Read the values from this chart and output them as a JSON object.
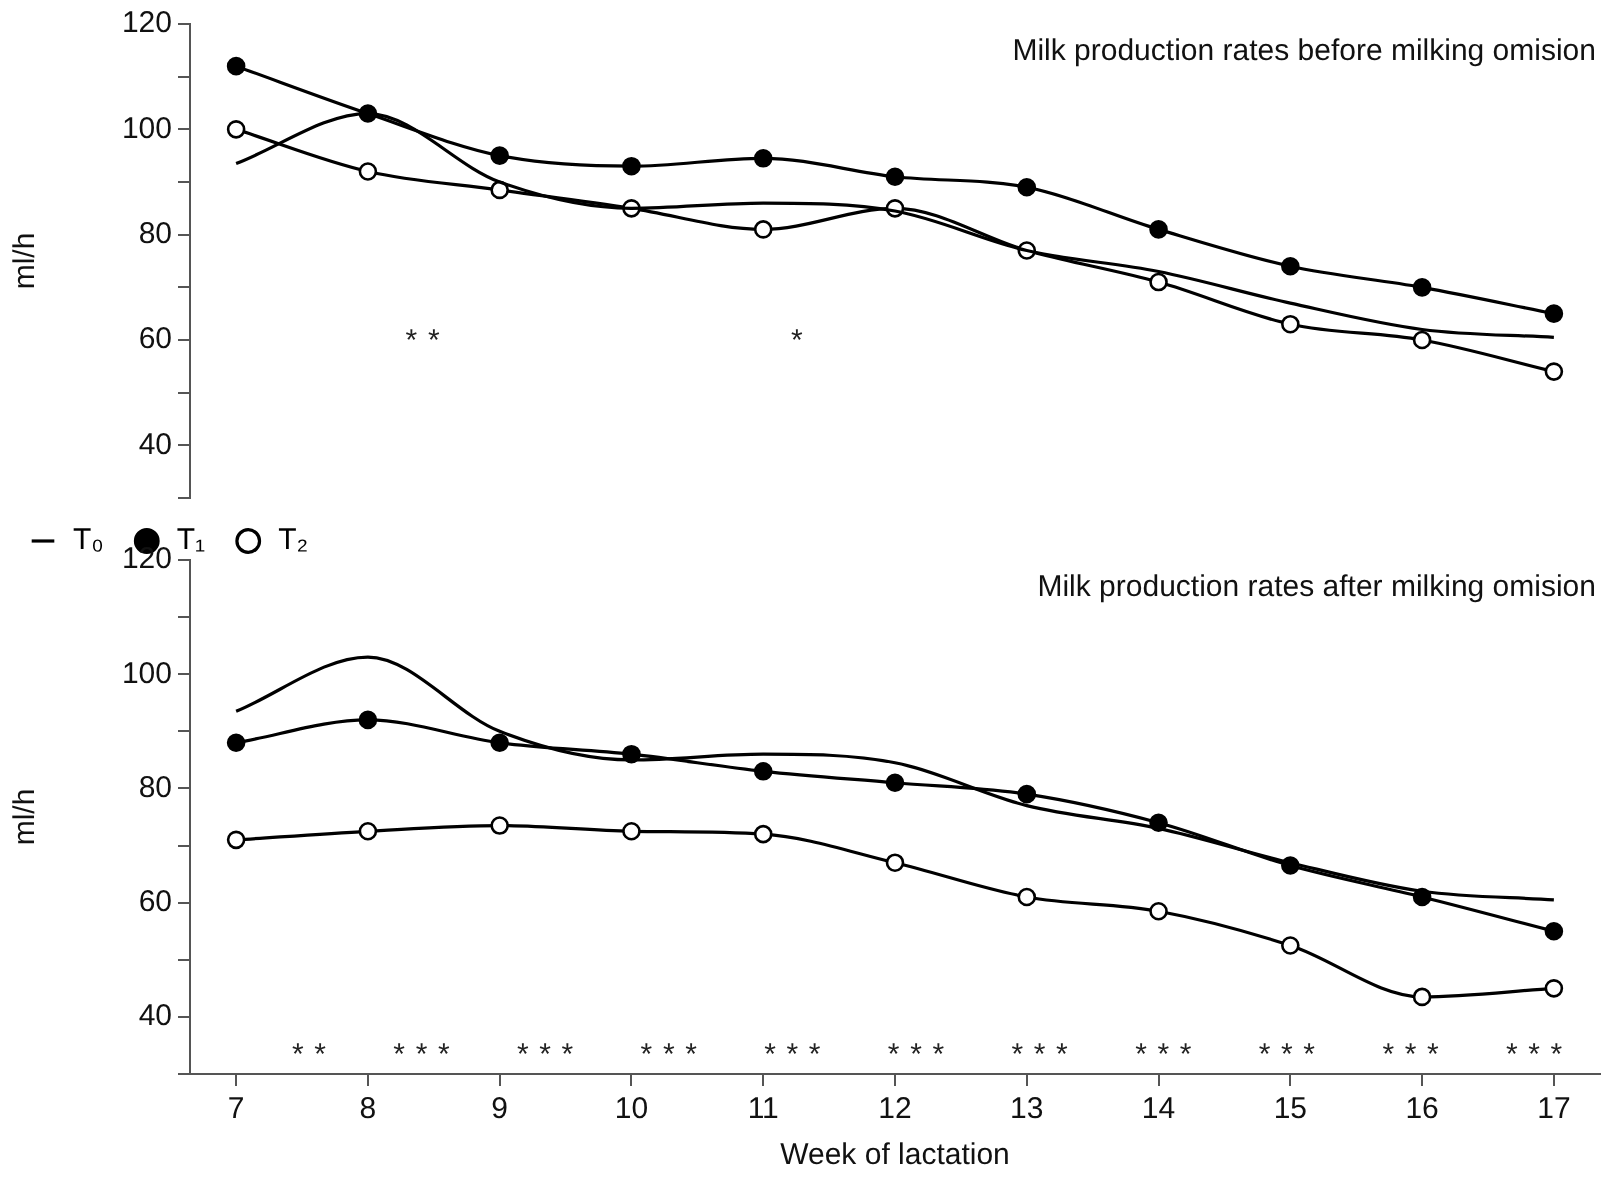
{
  "chart_data": [
    {
      "type": "line",
      "title": "Milk production rates before milking omision",
      "ylabel": "ml/h",
      "x": [
        7,
        8,
        9,
        10,
        11,
        12,
        13,
        14,
        15,
        16,
        17
      ],
      "series": [
        {
          "name": "T₀",
          "color": "#000000",
          "marker": "none",
          "values": [
            93.5,
            103,
            90,
            85,
            86,
            84.5,
            77,
            73,
            67,
            62,
            60.5
          ]
        },
        {
          "name": "T₁",
          "color": "#000000",
          "marker": "circle",
          "values": [
            112,
            103,
            95,
            93,
            94.5,
            91,
            89,
            81,
            74,
            70,
            65
          ]
        },
        {
          "name": "T₂",
          "color": "#000000",
          "marker": "open circle",
          "values": [
            100,
            92,
            88.5,
            85,
            81,
            85,
            77,
            71,
            63,
            60,
            54
          ]
        }
      ],
      "ylim": [
        30,
        120
      ],
      "yticks": [
        {
          "value": 30,
          "label": null
        },
        40,
        {
          "value": 50,
          "label": null
        },
        60,
        {
          "value": 70,
          "label": null
        },
        80,
        {
          "value": 90,
          "label": null
        },
        100,
        {
          "value": 110,
          "label": null
        },
        120
      ],
      "tick_labels": "y",
      "grid": false,
      "legend": "bottom left",
      "annotations": [
        "      **                  *"
      ]
    },
    {
      "type": "line",
      "title": "Milk production rates after milking omision",
      "ylabel": "ml/h",
      "xlabel": "Week of lactation",
      "x": [
        7,
        8,
        9,
        10,
        11,
        12,
        13,
        14,
        15,
        16,
        17
      ],
      "series": [
        {
          "color": "#000000",
          "marker": "none",
          "values": [
            93.5,
            103,
            90,
            85,
            86,
            84.5,
            77,
            73,
            67,
            62,
            60.5
          ]
        },
        {
          "color": "#000000",
          "marker": "circle",
          "values": [
            88,
            92,
            88,
            86,
            83,
            81,
            79,
            74,
            66.5,
            61,
            55
          ]
        },
        {
          "color": "#000000",
          "marker": "open circle",
          "values": [
            71,
            72.5,
            73.5,
            72.5,
            72,
            67,
            61,
            58.5,
            52.5,
            43.5,
            45
          ]
        }
      ],
      "xlim": [
        6.65,
        17.35
      ],
      "ylim": [
        30,
        120
      ],
      "xticks": [
        7,
        8,
        9,
        10,
        11,
        12,
        13,
        14,
        15,
        16,
        17
      ],
      "yticks": [
        {
          "value": 30,
          "label": null
        },
        40,
        {
          "value": 50,
          "label": null
        },
        60,
        {
          "value": 70,
          "label": null
        },
        80,
        {
          "value": 90,
          "label": null
        },
        100,
        {
          "value": 110,
          "label": null
        },
        120
      ],
      "grid": false,
      "legend": false,
      "annotations": [
        "**   ***   ***   ***   ***   ***   ***   ***   ***   ***   ***"
      ]
    }
  ]
}
